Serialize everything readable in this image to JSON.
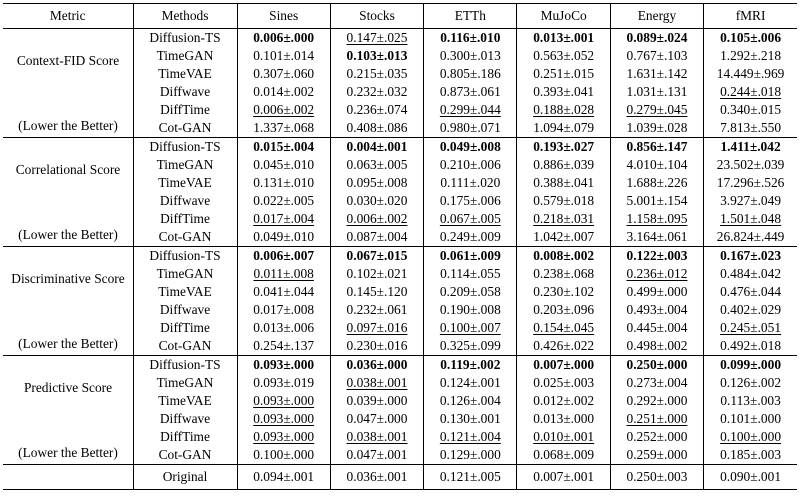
{
  "header": [
    "Metric",
    "Methods",
    "Sines",
    "Stocks",
    "ETTh",
    "MuJoCo",
    "Energy",
    "fMRI"
  ],
  "groups": [
    {
      "name": "Context-FID Score",
      "note": "(Lower the Better)",
      "rows": [
        {
          "method": "Diffusion-TS",
          "cells": [
            {
              "v": "0.006±.000",
              "s": "b"
            },
            {
              "v": "0.147±.025",
              "s": "u"
            },
            {
              "v": "0.116±.010",
              "s": "b"
            },
            {
              "v": "0.013±.001",
              "s": "b"
            },
            {
              "v": "0.089±.024",
              "s": "b"
            },
            {
              "v": "0.105±.006",
              "s": "b"
            }
          ]
        },
        {
          "method": "TimeGAN",
          "cells": [
            {
              "v": "0.101±.014"
            },
            {
              "v": "0.103±.013",
              "s": "b"
            },
            {
              "v": "0.300±.013"
            },
            {
              "v": "0.563±.052"
            },
            {
              "v": "0.767±.103"
            },
            {
              "v": "1.292±.218"
            }
          ]
        },
        {
          "method": "TimeVAE",
          "cells": [
            {
              "v": "0.307±.060"
            },
            {
              "v": "0.215±.035"
            },
            {
              "v": "0.805±.186"
            },
            {
              "v": "0.251±.015"
            },
            {
              "v": "1.631±.142"
            },
            {
              "v": "14.449±.969"
            }
          ]
        },
        {
          "method": "Diffwave",
          "cells": [
            {
              "v": "0.014±.002"
            },
            {
              "v": "0.232±.032"
            },
            {
              "v": "0.873±.061"
            },
            {
              "v": "0.393±.041"
            },
            {
              "v": "1.031±.131"
            },
            {
              "v": "0.244±.018",
              "s": "u"
            }
          ]
        },
        {
          "method": "DiffTime",
          "cells": [
            {
              "v": "0.006±.002",
              "s": "u"
            },
            {
              "v": "0.236±.074"
            },
            {
              "v": "0.299±.044",
              "s": "u"
            },
            {
              "v": "0.188±.028",
              "s": "u"
            },
            {
              "v": "0.279±.045",
              "s": "u"
            },
            {
              "v": "0.340±.015"
            }
          ]
        },
        {
          "method": "Cot-GAN",
          "cells": [
            {
              "v": "1.337±.068"
            },
            {
              "v": "0.408±.086"
            },
            {
              "v": "0.980±.071"
            },
            {
              "v": "1.094±.079"
            },
            {
              "v": "1.039±.028"
            },
            {
              "v": "7.813±.550"
            }
          ]
        }
      ]
    },
    {
      "name": "Correlational Score",
      "note": "(Lower the Better)",
      "rows": [
        {
          "method": "Diffusion-TS",
          "cells": [
            {
              "v": "0.015±.004",
              "s": "b"
            },
            {
              "v": "0.004±.001",
              "s": "b"
            },
            {
              "v": "0.049±.008",
              "s": "b"
            },
            {
              "v": "0.193±.027",
              "s": "b"
            },
            {
              "v": "0.856±.147",
              "s": "b"
            },
            {
              "v": "1.411±.042",
              "s": "b"
            }
          ]
        },
        {
          "method": "TimeGAN",
          "cells": [
            {
              "v": "0.045±.010"
            },
            {
              "v": "0.063±.005"
            },
            {
              "v": "0.210±.006"
            },
            {
              "v": "0.886±.039"
            },
            {
              "v": "4.010±.104"
            },
            {
              "v": "23.502±.039"
            }
          ]
        },
        {
          "method": "TimeVAE",
          "cells": [
            {
              "v": "0.131±.010"
            },
            {
              "v": "0.095±.008"
            },
            {
              "v": "0.111±.020"
            },
            {
              "v": "0.388±.041"
            },
            {
              "v": "1.688±.226"
            },
            {
              "v": "17.296±.526"
            }
          ]
        },
        {
          "method": "Diffwave",
          "cells": [
            {
              "v": "0.022±.005"
            },
            {
              "v": "0.030±.020"
            },
            {
              "v": "0.175±.006"
            },
            {
              "v": "0.579±.018"
            },
            {
              "v": "5.001±.154"
            },
            {
              "v": "3.927±.049"
            }
          ]
        },
        {
          "method": "DiffTime",
          "cells": [
            {
              "v": "0.017±.004",
              "s": "u"
            },
            {
              "v": "0.006±.002",
              "s": "u"
            },
            {
              "v": "0.067±.005",
              "s": "u"
            },
            {
              "v": "0.218±.031",
              "s": "u"
            },
            {
              "v": "1.158±.095",
              "s": "u"
            },
            {
              "v": "1.501±.048",
              "s": "u"
            }
          ]
        },
        {
          "method": "Cot-GAN",
          "cells": [
            {
              "v": "0.049±.010"
            },
            {
              "v": "0.087±.004"
            },
            {
              "v": "0.249±.009"
            },
            {
              "v": "1.042±.007"
            },
            {
              "v": "3.164±.061"
            },
            {
              "v": "26.824±.449"
            }
          ]
        }
      ]
    },
    {
      "name": "Discriminative Score",
      "note": "(Lower the Better)",
      "rows": [
        {
          "method": "Diffusion-TS",
          "cells": [
            {
              "v": "0.006±.007",
              "s": "b"
            },
            {
              "v": "0.067±.015",
              "s": "b"
            },
            {
              "v": "0.061±.009",
              "s": "b"
            },
            {
              "v": "0.008±.002",
              "s": "b"
            },
            {
              "v": "0.122±.003",
              "s": "b"
            },
            {
              "v": "0.167±.023",
              "s": "b"
            }
          ]
        },
        {
          "method": "TimeGAN",
          "cells": [
            {
              "v": "0.011±.008",
              "s": "u"
            },
            {
              "v": "0.102±.021"
            },
            {
              "v": "0.114±.055"
            },
            {
              "v": "0.238±.068"
            },
            {
              "v": "0.236±.012",
              "s": "u"
            },
            {
              "v": "0.484±.042"
            }
          ]
        },
        {
          "method": "TimeVAE",
          "cells": [
            {
              "v": "0.041±.044"
            },
            {
              "v": "0.145±.120"
            },
            {
              "v": "0.209±.058"
            },
            {
              "v": "0.230±.102"
            },
            {
              "v": "0.499±.000"
            },
            {
              "v": "0.476±.044"
            }
          ]
        },
        {
          "method": "Diffwave",
          "cells": [
            {
              "v": "0.017±.008"
            },
            {
              "v": "0.232±.061"
            },
            {
              "v": "0.190±.008"
            },
            {
              "v": "0.203±.096"
            },
            {
              "v": "0.493±.004"
            },
            {
              "v": "0.402±.029"
            }
          ]
        },
        {
          "method": "DiffTime",
          "cells": [
            {
              "v": "0.013±.006"
            },
            {
              "v": "0.097±.016",
              "s": "u"
            },
            {
              "v": "0.100±.007",
              "s": "u"
            },
            {
              "v": "0.154±.045",
              "s": "u"
            },
            {
              "v": "0.445±.004"
            },
            {
              "v": "0.245±.051",
              "s": "u"
            }
          ]
        },
        {
          "method": "Cot-GAN",
          "cells": [
            {
              "v": "0.254±.137"
            },
            {
              "v": "0.230±.016"
            },
            {
              "v": "0.325±.099"
            },
            {
              "v": "0.426±.022"
            },
            {
              "v": "0.498±.002"
            },
            {
              "v": "0.492±.018"
            }
          ]
        }
      ]
    },
    {
      "name": "Predictive Score",
      "note": "(Lower the Better)",
      "rows": [
        {
          "method": "Diffusion-TS",
          "cells": [
            {
              "v": "0.093±.000",
              "s": "b"
            },
            {
              "v": "0.036±.000",
              "s": "b"
            },
            {
              "v": "0.119±.002",
              "s": "b"
            },
            {
              "v": "0.007±.000",
              "s": "b"
            },
            {
              "v": "0.250±.000",
              "s": "b"
            },
            {
              "v": "0.099±.000",
              "s": "b"
            }
          ]
        },
        {
          "method": "TimeGAN",
          "cells": [
            {
              "v": "0.093±.019"
            },
            {
              "v": "0.038±.001",
              "s": "u"
            },
            {
              "v": "0.124±.001"
            },
            {
              "v": "0.025±.003"
            },
            {
              "v": "0.273±.004"
            },
            {
              "v": "0.126±.002"
            }
          ]
        },
        {
          "method": "TimeVAE",
          "cells": [
            {
              "v": "0.093±.000",
              "s": "u"
            },
            {
              "v": "0.039±.000"
            },
            {
              "v": "0.126±.004"
            },
            {
              "v": "0.012±.002"
            },
            {
              "v": "0.292±.000"
            },
            {
              "v": "0.113±.003"
            }
          ]
        },
        {
          "method": "Diffwave",
          "cells": [
            {
              "v": "0.093±.000",
              "s": "u"
            },
            {
              "v": "0.047±.000"
            },
            {
              "v": "0.130±.001"
            },
            {
              "v": "0.013±.000"
            },
            {
              "v": "0.251±.000",
              "s": "u"
            },
            {
              "v": "0.101±.000"
            }
          ]
        },
        {
          "method": "DiffTime",
          "cells": [
            {
              "v": "0.093±.000",
              "s": "u"
            },
            {
              "v": "0.038±.001",
              "s": "u"
            },
            {
              "v": "0.121±.004",
              "s": "u"
            },
            {
              "v": "0.010±.001",
              "s": "u"
            },
            {
              "v": "0.252±.000"
            },
            {
              "v": "0.100±.000",
              "s": "u"
            }
          ]
        },
        {
          "method": "Cot-GAN",
          "cells": [
            {
              "v": "0.100±.000"
            },
            {
              "v": "0.047±.001"
            },
            {
              "v": "0.129±.000"
            },
            {
              "v": "0.068±.009"
            },
            {
              "v": "0.259±.000"
            },
            {
              "v": "0.185±.003"
            }
          ]
        }
      ]
    }
  ],
  "original": {
    "method": "Original",
    "cells": [
      "0.094±.001",
      "0.036±.001",
      "0.121±.005",
      "0.007±.001",
      "0.250±.003",
      "0.090±.001"
    ]
  }
}
